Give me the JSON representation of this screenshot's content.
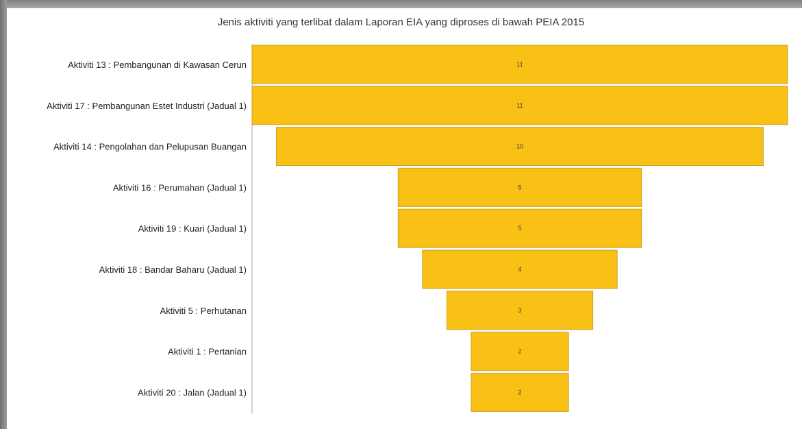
{
  "chart_data": {
    "type": "bar",
    "subtype": "funnel",
    "title": "Jenis aktiviti yang terlibat dalam Laporan EIA yang diproses di bawah PEIA 2015",
    "categories": [
      "Aktiviti 13 : Pembangunan di Kawasan Cerun",
      "Aktiviti 17 : Pembangunan Estet Industri (Jadual 1)",
      "Aktiviti 14 : Pengolahan dan Pelupusan Buangan",
      "Aktiviti 16 : Perumahan (Jadual 1)",
      "Aktiviti 19 : Kuari (Jadual 1)",
      "Aktiviti 18 : Bandar Baharu (Jadual 1)",
      "Aktiviti 5 : Perhutanan",
      "Aktiviti 1 : Pertanian",
      "Aktiviti 20 : Jalan (Jadual 1)"
    ],
    "values": [
      11,
      11,
      10,
      5,
      5,
      4,
      3,
      2,
      2
    ],
    "xlabel": "",
    "ylabel": "",
    "xlim": [
      0,
      11
    ],
    "grid": false,
    "legend": "none",
    "bar_color": "#F9C015",
    "bar_border_color": "#C9A227"
  }
}
